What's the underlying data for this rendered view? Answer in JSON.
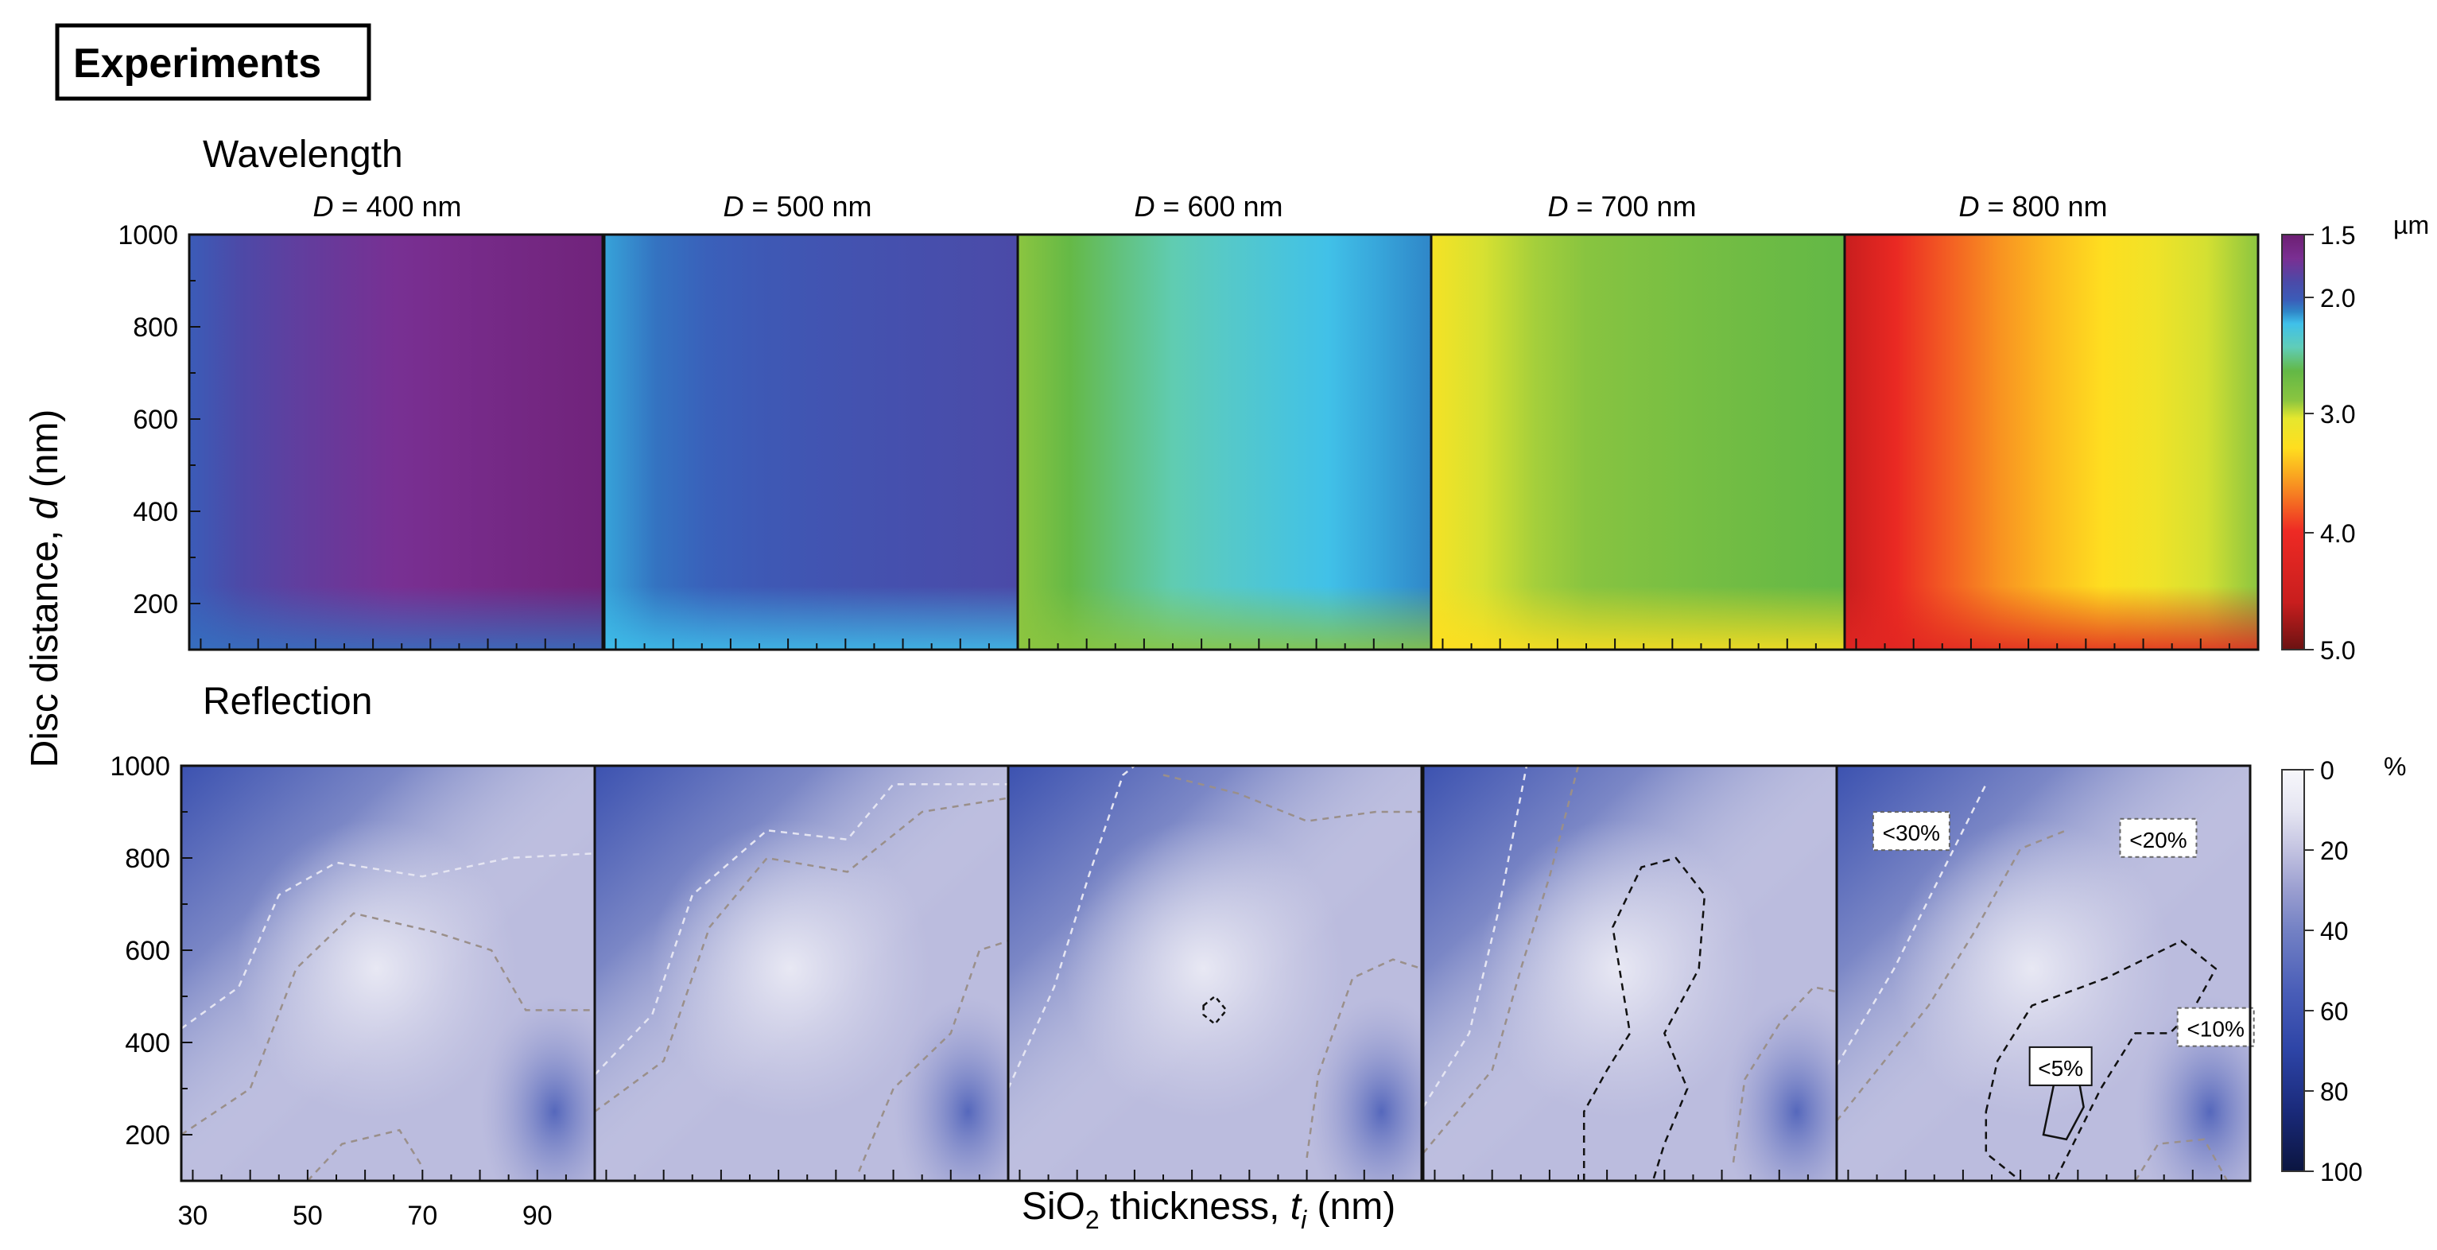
{
  "figure_label": "Experiments",
  "row_titles": {
    "wavelength": "Wavelength",
    "reflection": "Reflection"
  },
  "colorbars": {
    "wavelength": {
      "unit": "µm",
      "ticks": [
        1.5,
        2.0,
        3.0,
        4.0,
        5.0
      ],
      "tick_labels": [
        "1.5",
        "2.0",
        "3.0",
        "4.0",
        "5.0"
      ],
      "range": [
        1.5,
        5.0
      ]
    },
    "reflection": {
      "unit": "%",
      "ticks": [
        0,
        20,
        40,
        60,
        80,
        100
      ],
      "tick_labels": [
        "0",
        "20",
        "40",
        "60",
        "80",
        "100"
      ],
      "range": [
        0,
        100
      ]
    }
  },
  "chart_data": {
    "type": "heatmap",
    "xlabel_main": "SiO",
    "xlabel_sub": "2",
    "xlabel_rest": " thickness, ",
    "xlabel_var": "t",
    "xlabel_var_sub": "i",
    "xlabel_unit": " (nm)",
    "ylabel_main": "Disc distance, ",
    "ylabel_var": "d",
    "ylabel_unit": " (nm)",
    "x_ticks": [
      "30",
      "50",
      "70",
      "90"
    ],
    "x_tick_values": [
      30,
      50,
      70,
      90
    ],
    "xlim": [
      28,
      100
    ],
    "y_ticks": [
      "200",
      "400",
      "600",
      "800",
      "1000"
    ],
    "y_tick_values": [
      200,
      400,
      600,
      800,
      1000
    ],
    "ylim": [
      100,
      1000
    ],
    "panels": [
      {
        "title_var": "D",
        "title_rest": " = 400 nm",
        "wavelength_um": {
          "left": 2.05,
          "right": 1.55,
          "bottom_edge": 2.1,
          "x_mid": 55
        },
        "reflection_contours": [
          {
            "level": "<30%",
            "points": [
              [
                28,
                430
              ],
              [
                38,
                520
              ],
              [
                45,
                720
              ],
              [
                55,
                790
              ],
              [
                70,
                760
              ],
              [
                85,
                800
              ],
              [
                100,
                810
              ]
            ]
          },
          {
            "level": "<20%",
            "points": [
              [
                28,
                200
              ],
              [
                40,
                300
              ],
              [
                48,
                560
              ],
              [
                58,
                680
              ],
              [
                72,
                640
              ],
              [
                82,
                600
              ],
              [
                88,
                470
              ],
              [
                100,
                470
              ]
            ]
          },
          {
            "level": "<20%",
            "points": [
              [
                50,
                100
              ],
              [
                56,
                180
              ],
              [
                66,
                210
              ],
              [
                70,
                130
              ]
            ]
          }
        ]
      },
      {
        "title_var": "D",
        "title_rest": " = 500 nm",
        "wavelength_um": {
          "left": 2.2,
          "right": 1.9,
          "bottom_edge": 2.25,
          "x_mid": 45
        },
        "reflection_contours": [
          {
            "level": "<30%",
            "points": [
              [
                28,
                330
              ],
              [
                38,
                460
              ],
              [
                45,
                720
              ],
              [
                58,
                860
              ],
              [
                72,
                840
              ],
              [
                80,
                960
              ],
              [
                100,
                960
              ]
            ]
          },
          {
            "level": "<20%",
            "points": [
              [
                28,
                250
              ],
              [
                40,
                360
              ],
              [
                48,
                650
              ],
              [
                58,
                800
              ],
              [
                72,
                770
              ],
              [
                85,
                900
              ],
              [
                100,
                930
              ]
            ]
          },
          {
            "level": "<20%",
            "points": [
              [
                74,
                120
              ],
              [
                80,
                300
              ],
              [
                90,
                420
              ],
              [
                95,
                600
              ],
              [
                100,
                620
              ]
            ]
          }
        ]
      },
      {
        "title_var": "D",
        "title_rest": " = 600 nm",
        "wavelength_um": {
          "left": 2.9,
          "right": 2.15,
          "bottom_edge": 2.9,
          "x_mid": 50
        },
        "reflection_contours": [
          {
            "level": "<30%",
            "points": [
              [
                28,
                300
              ],
              [
                36,
                520
              ],
              [
                42,
                760
              ],
              [
                48,
                980
              ],
              [
                50,
                1000
              ]
            ]
          },
          {
            "level": "<20%",
            "points": [
              [
                55,
                980
              ],
              [
                68,
                940
              ],
              [
                80,
                880
              ],
              [
                92,
                900
              ],
              [
                100,
                900
              ]
            ]
          },
          {
            "level": "<20%",
            "points": [
              [
                80,
                150
              ],
              [
                82,
                330
              ],
              [
                88,
                540
              ],
              [
                95,
                580
              ],
              [
                100,
                560
              ]
            ]
          },
          {
            "level": "<5%",
            "closed": true,
            "points": [
              [
                62,
                480
              ],
              [
                64,
                500
              ],
              [
                66,
                470
              ],
              [
                64,
                440
              ],
              [
                62,
                460
              ]
            ]
          }
        ]
      },
      {
        "title_var": "D",
        "title_rest": " = 700 nm",
        "wavelength_um": {
          "left": 3.2,
          "right": 2.65,
          "bottom_edge": 3.3,
          "x_mid": 45
        },
        "reflection_contours": [
          {
            "level": "<30%",
            "points": [
              [
                28,
                260
              ],
              [
                36,
                420
              ],
              [
                41,
                680
              ],
              [
                46,
                1000
              ]
            ]
          },
          {
            "level": "<20%",
            "points": [
              [
                28,
                160
              ],
              [
                40,
                340
              ],
              [
                45,
                560
              ],
              [
                50,
                760
              ],
              [
                55,
                1000
              ]
            ]
          },
          {
            "level": "<10%",
            "closed": true,
            "points": [
              [
                56,
                100
              ],
              [
                56,
                250
              ],
              [
                60,
                340
              ],
              [
                64,
                420
              ],
              [
                61,
                650
              ],
              [
                66,
                780
              ],
              [
                72,
                800
              ],
              [
                77,
                720
              ],
              [
                76,
                560
              ],
              [
                70,
                420
              ],
              [
                74,
                300
              ],
              [
                70,
                180
              ],
              [
                68,
                100
              ]
            ]
          },
          {
            "level": "<20%",
            "points": [
              [
                82,
                140
              ],
              [
                84,
                320
              ],
              [
                90,
                440
              ],
              [
                96,
                520
              ],
              [
                100,
                510
              ]
            ]
          }
        ]
      },
      {
        "title_var": "D",
        "title_rest": " = 800 nm",
        "wavelength_um": {
          "left": 4.6,
          "right": 2.9,
          "bottom_edge": 4.2,
          "x_mid": 45
        },
        "reflection_contours": [
          {
            "level": "<30%",
            "points": [
              [
                28,
                350
              ],
              [
                38,
                560
              ],
              [
                46,
                760
              ],
              [
                54,
                960
              ]
            ]
          },
          {
            "level": "<20%",
            "points": [
              [
                28,
                230
              ],
              [
                44,
                480
              ],
              [
                52,
                640
              ],
              [
                60,
                820
              ],
              [
                68,
                860
              ]
            ]
          },
          {
            "level": "<10%",
            "closed": true,
            "points": [
              [
                54,
                250
              ],
              [
                56,
                360
              ],
              [
                62,
                480
              ],
              [
                75,
                540
              ],
              [
                88,
                620
              ],
              [
                94,
                560
              ],
              [
                90,
                470
              ],
              [
                86,
                420
              ],
              [
                80,
                420
              ],
              [
                74,
                300
              ],
              [
                70,
                200
              ],
              [
                66,
                100
              ],
              [
                60,
                100
              ],
              [
                54,
                160
              ]
            ]
          },
          {
            "level": "<5%",
            "closed": true,
            "points": [
              [
                64,
                200
              ],
              [
                66,
                320
              ],
              [
                70,
                330
              ],
              [
                71,
                260
              ],
              [
                68,
                190
              ]
            ]
          },
          {
            "level": "<20%",
            "points": [
              [
                80,
                100
              ],
              [
                84,
                180
              ],
              [
                92,
                190
              ],
              [
                96,
                100
              ]
            ]
          }
        ],
        "labels": [
          {
            "text": "<30%",
            "x": 41,
            "y": 855
          },
          {
            "text": "<20%",
            "x": 84,
            "y": 840
          },
          {
            "text": "<10%",
            "x": 94,
            "y": 430
          },
          {
            "text": "<5%",
            "x": 67,
            "y": 345
          }
        ]
      }
    ],
    "colors": {
      "wavelength_stops": [
        {
          "v": 1.5,
          "c": "#6d1f73"
        },
        {
          "v": 1.7,
          "c": "#7a2f92"
        },
        {
          "v": 1.9,
          "c": "#4b4aa8"
        },
        {
          "v": 2.05,
          "c": "#3b5cb8"
        },
        {
          "v": 2.15,
          "c": "#2f86c8"
        },
        {
          "v": 2.25,
          "c": "#3fc0ea"
        },
        {
          "v": 2.45,
          "c": "#60cdb8"
        },
        {
          "v": 2.65,
          "c": "#63b846"
        },
        {
          "v": 2.9,
          "c": "#8bc540"
        },
        {
          "v": 3.05,
          "c": "#e6e72e"
        },
        {
          "v": 3.3,
          "c": "#ffde1f"
        },
        {
          "v": 3.6,
          "c": "#f89521"
        },
        {
          "v": 4.0,
          "c": "#ee2a24"
        },
        {
          "v": 4.6,
          "c": "#c81e1e"
        },
        {
          "v": 5.0,
          "c": "#6b1212"
        }
      ],
      "reflection_stops": [
        {
          "v": 0,
          "c": "#f7f7fb"
        },
        {
          "v": 10,
          "c": "#e6e6f2"
        },
        {
          "v": 20,
          "c": "#c3c3e1"
        },
        {
          "v": 30,
          "c": "#9a9ed0"
        },
        {
          "v": 40,
          "c": "#7381c4"
        },
        {
          "v": 55,
          "c": "#4a5eb8"
        },
        {
          "v": 70,
          "c": "#2d44a6"
        },
        {
          "v": 85,
          "c": "#1a2a7a"
        },
        {
          "v": 100,
          "c": "#0b1540"
        }
      ]
    }
  }
}
